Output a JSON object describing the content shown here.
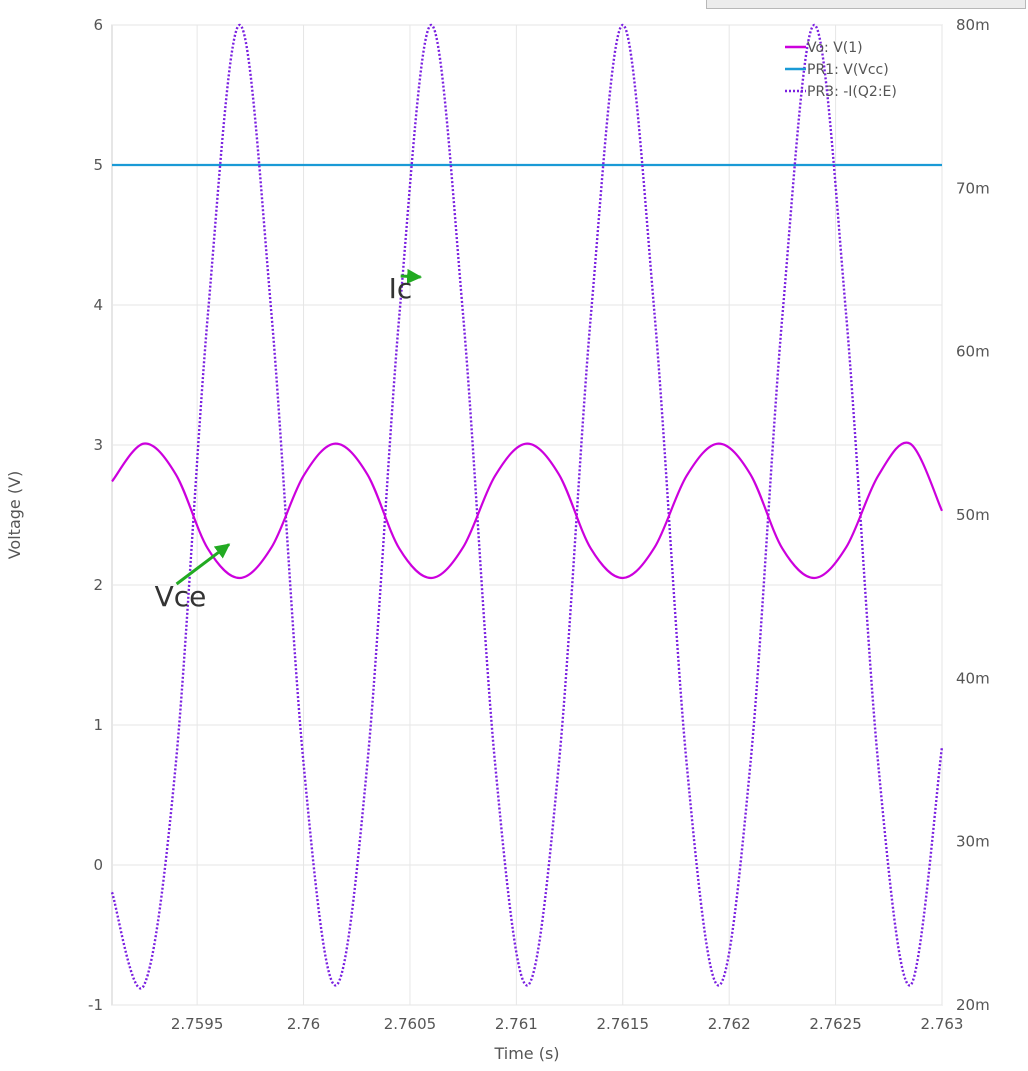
{
  "top_bar": {
    "label": ""
  },
  "chart_data": {
    "type": "line",
    "xlabel": "Time (s)",
    "ylabel": "Voltage (V)",
    "xlim": [
      2.7591,
      2.763
    ],
    "ylim": [
      -1,
      6
    ],
    "y2lim": [
      0.02,
      0.08
    ],
    "x_ticks": [
      2.7595,
      2.76,
      2.7605,
      2.761,
      2.7615,
      2.762,
      2.7625,
      2.763
    ],
    "x_tick_labels": [
      "2.7595",
      "2.76",
      "2.7605",
      "2.761",
      "2.7615",
      "2.762",
      "2.7625",
      "2.763"
    ],
    "y_ticks": [
      -1,
      0,
      1,
      2,
      3,
      4,
      5,
      6
    ],
    "y_tick_labels": [
      "-1",
      "0",
      "1",
      "2",
      "3",
      "4",
      "5",
      "6"
    ],
    "y2_ticks": [
      0.02,
      0.03,
      0.04,
      0.05,
      0.06,
      0.07,
      0.08
    ],
    "y2_tick_labels": [
      "20m",
      "30m",
      "40m",
      "50m",
      "60m",
      "70m",
      "80m"
    ],
    "grid": true,
    "legend": "top-right",
    "series": [
      {
        "name": "Vo: V(1)",
        "axis": "left",
        "color": "#cc00dd",
        "dash": "solid",
        "x": [
          2.7591,
          2.75925,
          2.7594,
          2.75955,
          2.7597,
          2.75985,
          2.76,
          2.76015,
          2.7603,
          2.76045,
          2.7606,
          2.76075,
          2.7609,
          2.76105,
          2.7612,
          2.76135,
          2.7615,
          2.76165,
          2.7618,
          2.76195,
          2.7621,
          2.76225,
          2.7624,
          2.76255,
          2.7627,
          2.76285,
          2.763
        ],
        "y": [
          2.74,
          3.01,
          2.79,
          2.26,
          2.05,
          2.27,
          2.78,
          3.01,
          2.79,
          2.26,
          2.05,
          2.27,
          2.78,
          3.01,
          2.79,
          2.26,
          2.05,
          2.27,
          2.78,
          3.01,
          2.79,
          2.26,
          2.05,
          2.27,
          2.78,
          3.01,
          2.53
        ]
      },
      {
        "name": "PR1: V(Vcc)",
        "axis": "left",
        "color": "#1a9ad6",
        "dash": "solid",
        "x": [
          2.7591,
          2.763
        ],
        "y": [
          5.0,
          5.0
        ]
      },
      {
        "name": "PR3: -I(Q2:E)",
        "axis": "right",
        "color": "#7a20e0",
        "dash": "dotted",
        "x": [
          2.7591,
          2.75925,
          2.7594,
          2.75955,
          2.7597,
          2.75985,
          2.76,
          2.76015,
          2.7603,
          2.76045,
          2.7606,
          2.76075,
          2.7609,
          2.76105,
          2.7612,
          2.76135,
          2.7615,
          2.76165,
          2.7618,
          2.76195,
          2.7621,
          2.76225,
          2.7624,
          2.76255,
          2.7627,
          2.76285,
          2.763
        ],
        "y": [
          0.0269,
          0.0212,
          0.0348,
          0.0622,
          0.08,
          0.0622,
          0.0348,
          0.0212,
          0.0348,
          0.0622,
          0.08,
          0.0622,
          0.0348,
          0.0212,
          0.0348,
          0.0622,
          0.08,
          0.0622,
          0.0348,
          0.0212,
          0.0348,
          0.0622,
          0.08,
          0.0622,
          0.0348,
          0.0212,
          0.0358
        ]
      }
    ],
    "annotations": [
      {
        "text": "Ic",
        "x": 2.7604,
        "y": 4.05,
        "arrow_to_x": 2.76055,
        "arrow_to_y": 4.2,
        "color": "#22aa22"
      },
      {
        "text": "Vce",
        "x": 2.7593,
        "y": 1.85,
        "arrow_to_x": 2.75965,
        "arrow_to_y": 2.29,
        "color": "#22aa22"
      }
    ]
  }
}
